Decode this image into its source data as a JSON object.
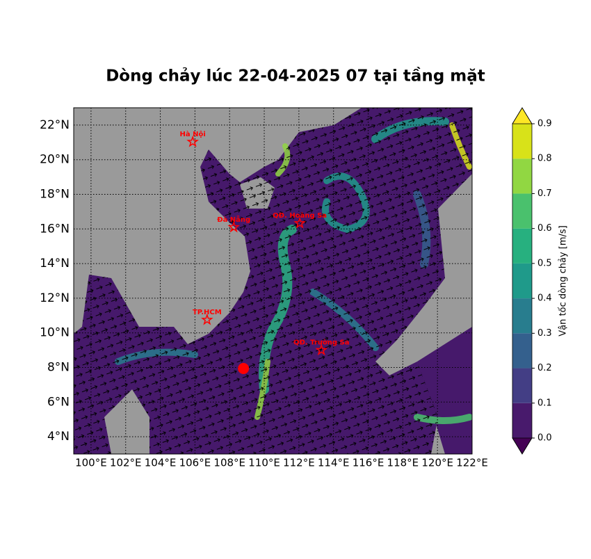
{
  "chart_data": {
    "type": "map",
    "title": "Dòng chảy lúc 22-04-2025 07 tại tầng mặt",
    "xlim": [
      99,
      122
    ],
    "ylim": [
      3,
      23
    ],
    "xticks": [
      {
        "value": 100,
        "label": "100°E"
      },
      {
        "value": 102,
        "label": "102°E"
      },
      {
        "value": 104,
        "label": "104°E"
      },
      {
        "value": 106,
        "label": "106°E"
      },
      {
        "value": 108,
        "label": "108°E"
      },
      {
        "value": 110,
        "label": "110°E"
      },
      {
        "value": 112,
        "label": "112°E"
      },
      {
        "value": 114,
        "label": "114°E"
      },
      {
        "value": 116,
        "label": "116°E"
      },
      {
        "value": 118,
        "label": "118°E"
      },
      {
        "value": 120,
        "label": "120°E"
      },
      {
        "value": 122,
        "label": "122°E"
      }
    ],
    "yticks": [
      {
        "value": 4,
        "label": "4°N"
      },
      {
        "value": 6,
        "label": "6°N"
      },
      {
        "value": 8,
        "label": "8°N"
      },
      {
        "value": 10,
        "label": "10°N"
      },
      {
        "value": 12,
        "label": "12°N"
      },
      {
        "value": 14,
        "label": "14°N"
      },
      {
        "value": 16,
        "label": "16°N"
      },
      {
        "value": 18,
        "label": "18°N"
      },
      {
        "value": 20,
        "label": "20°N"
      },
      {
        "value": 22,
        "label": "22°N"
      }
    ],
    "grid": true,
    "places": [
      {
        "name": "Hà Nội",
        "x": 105.87,
        "y": 21.03
      },
      {
        "name": "Đà Nẵng",
        "x": 108.24,
        "y": 16.1
      },
      {
        "name": "QĐ. Hoàng Sa",
        "x": 112.05,
        "y": 16.33
      },
      {
        "name": "TP.HCM",
        "x": 106.7,
        "y": 10.75
      },
      {
        "name": "QĐ. Trường Sa",
        "x": 113.3,
        "y": 9.0
      }
    ],
    "place_color": "#ff0000",
    "point": {
      "x": 108.8,
      "y": 7.94,
      "color": "#ff0000"
    },
    "colorbar": {
      "label": "Vận tốc dòng chảy [m/s]",
      "ticks": [
        {
          "value": 0,
          "label": "0.0"
        },
        {
          "value": 0.1,
          "label": "0.1"
        },
        {
          "value": 0.2,
          "label": "0.2"
        },
        {
          "value": 0.3,
          "label": "0.3"
        },
        {
          "value": 0.4,
          "label": "0.4"
        },
        {
          "value": 0.5,
          "label": "0.5"
        },
        {
          "value": 0.6,
          "label": "0.6"
        },
        {
          "value": 0.7,
          "label": "0.7"
        },
        {
          "value": 0.8,
          "label": "0.8"
        },
        {
          "value": 0.9,
          "label": "0.9"
        }
      ],
      "colors": [
        "#481a6c",
        "#433e85",
        "#34608d",
        "#287d8e",
        "#1f9a8a",
        "#27b07f",
        "#4ac16d",
        "#91d742",
        "#d8e219"
      ],
      "under_color": "#440154",
      "over_color": "#fde725"
    }
  }
}
